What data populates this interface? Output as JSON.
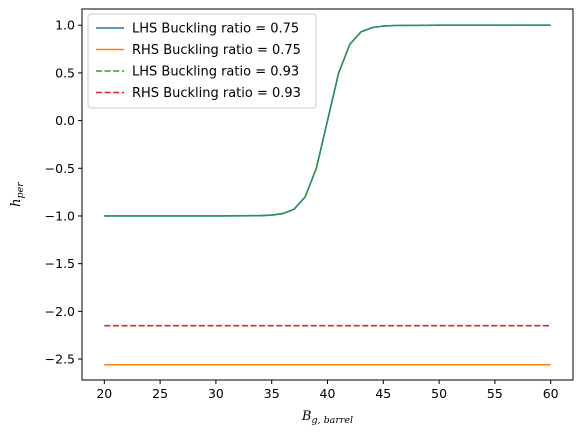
{
  "chart_data": {
    "type": "line",
    "title": "",
    "xlabel": {
      "base": "B",
      "sub": "g, barrel"
    },
    "ylabel": {
      "base": "h",
      "sub": "per"
    },
    "xlim": [
      18,
      62
    ],
    "ylim": [
      -2.72,
      1.17
    ],
    "xticks": [
      20,
      25,
      30,
      35,
      40,
      45,
      50,
      55,
      60
    ],
    "yticks": [
      1.0,
      0.5,
      0.0,
      -0.5,
      -1.0,
      -1.5,
      -2.0,
      -2.5
    ],
    "ytick_labels": [
      "1.0",
      "0.5",
      "0.0",
      "−0.5",
      "−1.0",
      "−1.5",
      "−2.0",
      "−2.5"
    ],
    "grid": false,
    "legend_position": "top-left",
    "series": [
      {
        "name": "LHS Buckling ratio = 0.75",
        "color": "#1f77b4",
        "style": "solid",
        "x": [
          20,
          30,
          34,
          35,
          36,
          37,
          38,
          39,
          40,
          41,
          42,
          43,
          44,
          45,
          46,
          50,
          60
        ],
        "y": [
          -1.0,
          -1.0,
          -0.997,
          -0.991,
          -0.975,
          -0.93,
          -0.8,
          -0.5,
          0.0,
          0.5,
          0.8,
          0.93,
          0.975,
          0.991,
          0.997,
          1.0,
          1.0
        ]
      },
      {
        "name": "RHS Buckling ratio = 0.75",
        "color": "#ff7f0e",
        "style": "solid",
        "x": [
          20,
          60
        ],
        "y": [
          -2.56,
          -2.56
        ]
      },
      {
        "name": "LHS Buckling ratio = 0.93",
        "color": "#2ca02c",
        "style": "dashed",
        "x": [
          20,
          30,
          34,
          35,
          36,
          37,
          38,
          39,
          40,
          41,
          42,
          43,
          44,
          45,
          46,
          50,
          60
        ],
        "y": [
          -1.0,
          -1.0,
          -0.997,
          -0.991,
          -0.975,
          -0.93,
          -0.8,
          -0.5,
          0.0,
          0.5,
          0.8,
          0.93,
          0.975,
          0.991,
          0.997,
          1.0,
          1.0
        ]
      },
      {
        "name": "RHS Buckling ratio = 0.93",
        "color": "#d62728",
        "style": "dashed",
        "x": [
          20,
          60
        ],
        "y": [
          -2.15,
          -2.15
        ]
      }
    ]
  }
}
